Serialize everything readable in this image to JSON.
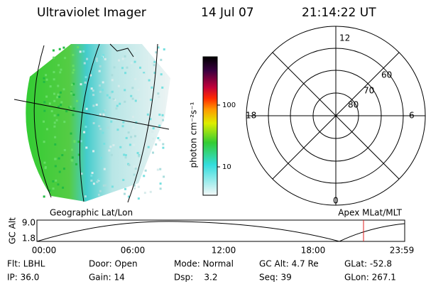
{
  "header": {
    "title": "Ultraviolet Imager",
    "date": "14 Jul 07",
    "time": "21:14:22 UT"
  },
  "colorbar": {
    "label": "photon cm⁻²s⁻¹",
    "ticks": [
      "100",
      "10"
    ]
  },
  "polar": {
    "mlt_labels": [
      "12",
      "6",
      "0",
      "18"
    ],
    "mlat_labels": [
      "60",
      "70",
      "80"
    ]
  },
  "orbit": {
    "left_label": "Geographic Lat/Lon",
    "right_label": "Apex MLat/MLT",
    "y_label": "GC Alt",
    "y_ticks": [
      "9.0",
      "1.8"
    ],
    "x_ticks": [
      "00:00",
      "06:00",
      "12:00",
      "18:00",
      "23:59"
    ]
  },
  "footer": {
    "rows": [
      [
        "Flt: LBHL",
        "Door: Open",
        "Mode: Normal",
        "GC Alt: 4.7 Re",
        "GLat: -52.8"
      ],
      [
        "IP: 36.0",
        "Gain: 14",
        "Dsp:    3.2",
        "Seq: 39",
        "GLon: 267.1"
      ]
    ]
  }
}
